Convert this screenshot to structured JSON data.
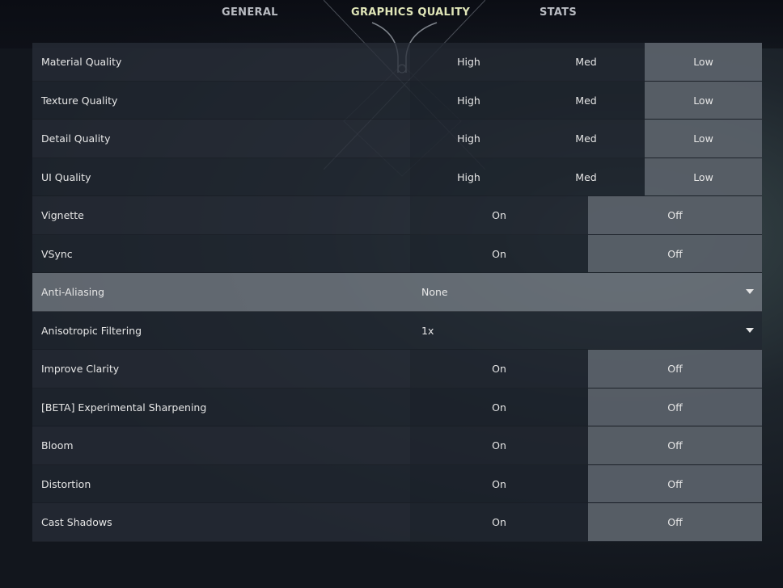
{
  "tabs": [
    {
      "label": "GENERAL",
      "active": false
    },
    {
      "label": "GRAPHICS QUALITY",
      "active": true
    },
    {
      "label": "STATS",
      "active": false
    }
  ],
  "settings": [
    {
      "label": "Material Quality",
      "type": "three",
      "options": [
        "High",
        "Med",
        "Low"
      ],
      "selected": "Low"
    },
    {
      "label": "Texture Quality",
      "type": "three",
      "options": [
        "High",
        "Med",
        "Low"
      ],
      "selected": "Low"
    },
    {
      "label": "Detail Quality",
      "type": "three",
      "options": [
        "High",
        "Med",
        "Low"
      ],
      "selected": "Low"
    },
    {
      "label": "UI Quality",
      "type": "three",
      "options": [
        "High",
        "Med",
        "Low"
      ],
      "selected": "Low"
    },
    {
      "label": "Vignette",
      "type": "two",
      "options": [
        "On",
        "Off"
      ],
      "selected": "Off"
    },
    {
      "label": "VSync",
      "type": "two",
      "options": [
        "On",
        "Off"
      ],
      "selected": "Off"
    },
    {
      "label": "Anti-Aliasing",
      "type": "dropdown",
      "value": "None",
      "highlighted": true
    },
    {
      "label": "Anisotropic Filtering",
      "type": "dropdown",
      "value": "1x"
    },
    {
      "label": "Improve Clarity",
      "type": "two",
      "options": [
        "On",
        "Off"
      ],
      "selected": "Off"
    },
    {
      "label": "[BETA] Experimental Sharpening",
      "type": "two",
      "options": [
        "On",
        "Off"
      ],
      "selected": "Off"
    },
    {
      "label": "Bloom",
      "type": "two",
      "options": [
        "On",
        "Off"
      ],
      "selected": "Off"
    },
    {
      "label": "Distortion",
      "type": "two",
      "options": [
        "On",
        "Off"
      ],
      "selected": "Off"
    },
    {
      "label": "Cast Shadows",
      "type": "two",
      "options": [
        "On",
        "Off"
      ],
      "selected": "Off"
    }
  ],
  "colors": {
    "active_tab": "#e0e6b8",
    "selected_option": "#5f666e"
  }
}
